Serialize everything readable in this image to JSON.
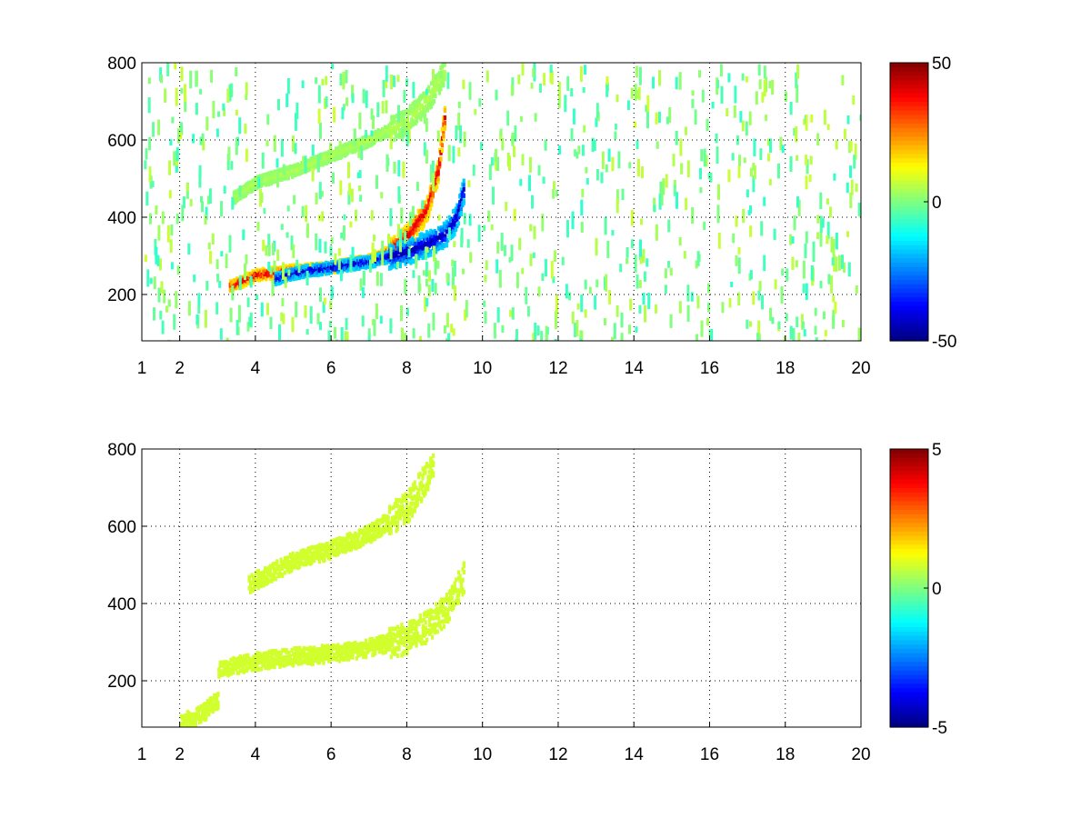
{
  "chart_data": [
    {
      "type": "heatmap",
      "title": "",
      "xlabel": "",
      "ylabel": "",
      "xlim": [
        1,
        20
      ],
      "ylim": [
        80,
        800
      ],
      "xticks": [
        1,
        2,
        4,
        6,
        8,
        10,
        12,
        14,
        16,
        18,
        20
      ],
      "yticks": [
        200,
        400,
        600,
        800
      ],
      "grid": true,
      "colormap": "jet",
      "color_range": [
        -50,
        50
      ],
      "colorbar_ticks": [
        -50,
        0,
        50
      ],
      "features": [
        {
          "label": "positive ridge",
          "approx_value": 40,
          "x": [
            3.3,
            4,
            5,
            6,
            7,
            7.5,
            8,
            8.5,
            8.8,
            9.0
          ],
          "y": [
            220,
            250,
            262,
            270,
            290,
            310,
            350,
            420,
            520,
            680
          ]
        },
        {
          "label": "negative ridge",
          "approx_value": -45,
          "x": [
            4.5,
            5,
            6,
            7,
            8,
            8.5,
            9,
            9.3,
            9.5
          ],
          "y": [
            240,
            255,
            270,
            285,
            310,
            330,
            355,
            400,
            480
          ]
        },
        {
          "label": "weak upper branch",
          "approx_value": 5,
          "x": [
            3.4,
            4,
            5,
            6,
            7,
            8,
            8.5,
            9
          ],
          "y": [
            450,
            490,
            520,
            560,
            600,
            650,
            700,
            780
          ]
        }
      ]
    },
    {
      "type": "heatmap",
      "title": "",
      "xlabel": "",
      "ylabel": "",
      "xlim": [
        1,
        20
      ],
      "ylim": [
        80,
        800
      ],
      "xticks": [
        1,
        2,
        4,
        6,
        8,
        10,
        12,
        14,
        16,
        18,
        20
      ],
      "yticks": [
        200,
        400,
        600,
        800
      ],
      "grid": true,
      "colormap": "jet",
      "color_range": [
        -5,
        5
      ],
      "colorbar_ticks": [
        -5,
        0,
        5
      ],
      "features": [
        {
          "label": "main band",
          "approx_value": 0.8,
          "x": [
            3.0,
            4,
            5,
            6,
            7,
            8,
            8.5,
            9,
            9.5
          ],
          "y": [
            230,
            250,
            262,
            270,
            285,
            310,
            340,
            380,
            470
          ]
        },
        {
          "label": "upper branch",
          "approx_value": 0.8,
          "x": [
            3.8,
            5,
            6,
            7,
            8,
            8.7
          ],
          "y": [
            450,
            510,
            540,
            580,
            650,
            760
          ]
        },
        {
          "label": "lower tail",
          "approx_value": 0.8,
          "x": [
            2.0,
            2.5,
            3.0
          ],
          "y": [
            90,
            110,
            150
          ]
        }
      ]
    }
  ]
}
